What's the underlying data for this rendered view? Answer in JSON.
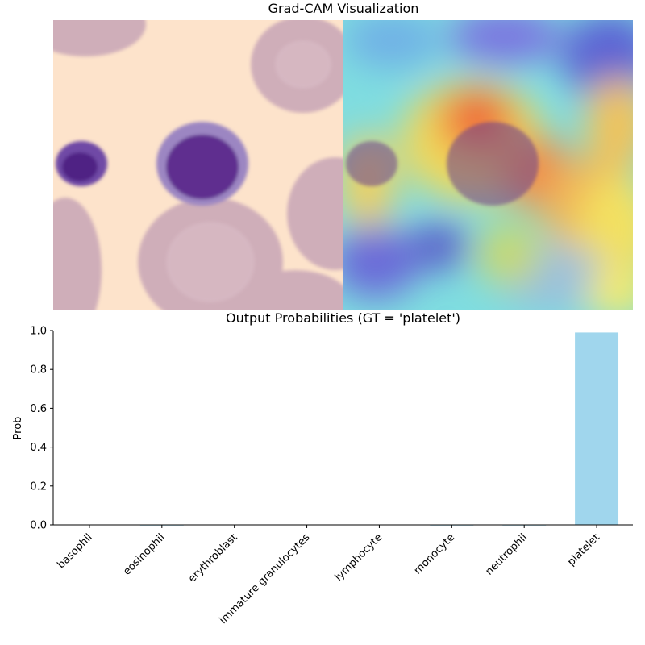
{
  "figure": {
    "title": "Grad-CAM Visualization"
  },
  "colors": {
    "bar": "#a0d6ed",
    "background_smear": "#fde3cb",
    "rbc": "#c9a8b6",
    "nucleus": "#5b2a86"
  },
  "chart_data": {
    "type": "bar",
    "title": "Output Probabilities (GT = 'platelet')",
    "xlabel": "",
    "ylabel": "Prob",
    "categories": [
      "basophil",
      "eosinophil",
      "erythroblast",
      "immature granulocytes",
      "lymphocyte",
      "monocyte",
      "neutrophil",
      "platelet"
    ],
    "values": [
      0.002,
      0.0,
      0.002,
      0.002,
      0.002,
      0.0,
      0.0,
      0.99
    ],
    "ylim": [
      0,
      1.0
    ],
    "yticks": [
      "0.0",
      "0.2",
      "0.4",
      "0.6",
      "0.8",
      "1.0"
    ],
    "grid": false,
    "legend": "none"
  }
}
